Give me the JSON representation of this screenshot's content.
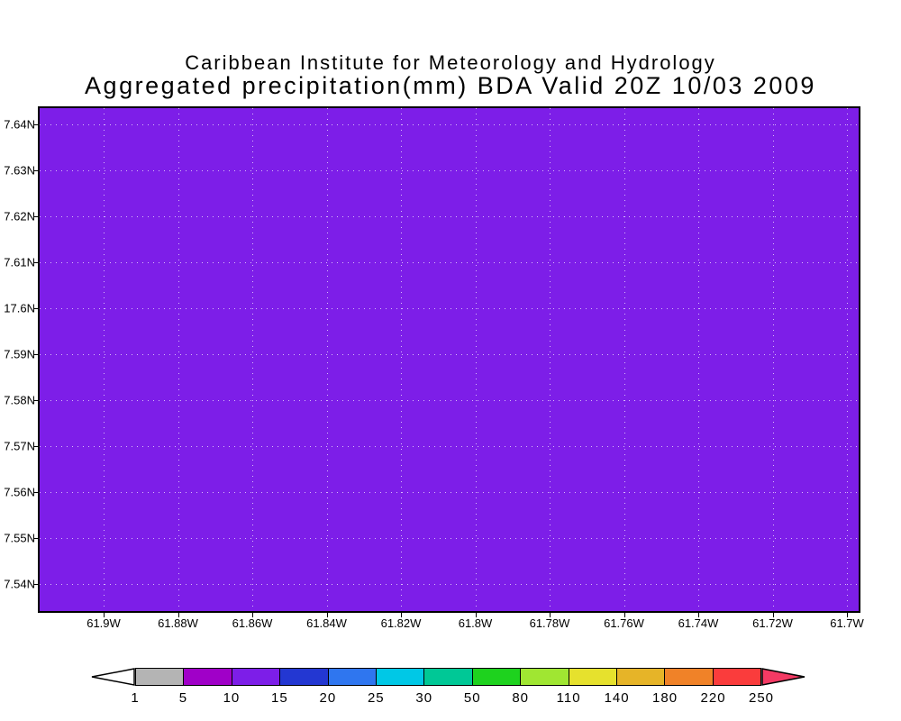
{
  "titles": {
    "line1": "Caribbean Institute for Meteorology and Hydrology",
    "line2": "Aggregated precipitation(mm) BDA Valid 20Z 10/03 2009"
  },
  "chart_data": {
    "type": "heatmap",
    "title": "Aggregated precipitation(mm) BDA Valid 20Z 10/03 2009",
    "subtitle": "Caribbean Institute for Meteorology and Hydrology",
    "grid": true,
    "x_axis": {
      "ticks": [
        "61.9W",
        "61.88W",
        "61.86W",
        "61.84W",
        "61.82W",
        "61.8W",
        "61.78W",
        "61.76W",
        "61.74W",
        "61.72W",
        "61.7W"
      ]
    },
    "y_axis": {
      "ticks": [
        "7.64N",
        "7.63N",
        "7.62N",
        "7.61N",
        "17.6N",
        "7.59N",
        "7.58N",
        "7.57N",
        "7.56N",
        "7.55N",
        "7.54N"
      ]
    },
    "fill": {
      "description": "uniform precipitation fill covering the entire map domain",
      "value_bin": "10-15",
      "units": "mm",
      "color": "#7d1ee8"
    },
    "colorbar": {
      "levels": [
        "1",
        "5",
        "10",
        "15",
        "20",
        "25",
        "30",
        "50",
        "80",
        "110",
        "140",
        "180",
        "220",
        "250"
      ],
      "segment_colors": [
        "#b4b4b4",
        "#a000c8",
        "#7d1ee8",
        "#2337d2",
        "#2f76ef",
        "#00c8e6",
        "#00c896",
        "#1ed21e",
        "#a0e632",
        "#e6e12d",
        "#e6b428",
        "#f08228",
        "#fa3c3c"
      ],
      "below_min_color": "#ffffff",
      "above_max_color": "#f43a64"
    }
  }
}
